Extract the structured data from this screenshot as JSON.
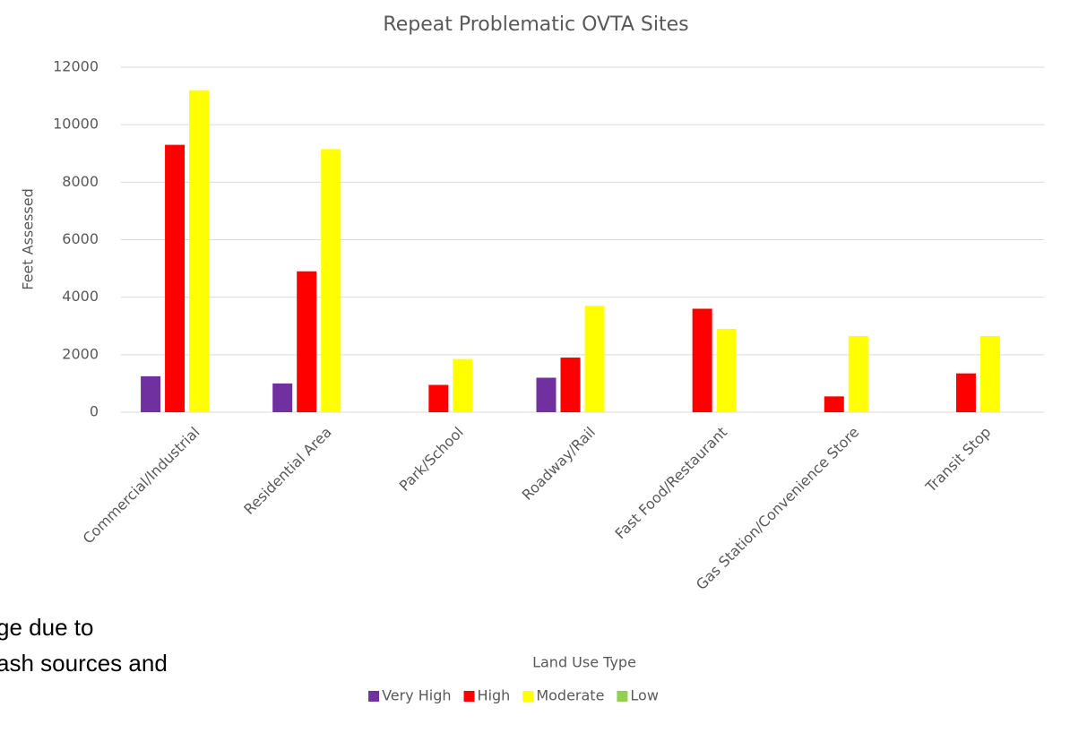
{
  "chart_data": {
    "type": "bar",
    "title": "Repeat Problematic OVTA Sites",
    "x_label": "Land Use Type",
    "y_label": "Feet Assessed",
    "categories": [
      "Commercial/Industrial",
      "Residential Area",
      "Park/School",
      "Roadway/Rail",
      "Fast Food/Restaurant",
      "Gas Station/Convenience Store",
      "Transit Stop"
    ],
    "series": [
      {
        "name": "Very High",
        "color": "#7030a0",
        "values": [
          1250,
          1000,
          null,
          1200,
          null,
          null,
          null
        ]
      },
      {
        "name": "High",
        "color": "#ff0000",
        "values": [
          9300,
          4900,
          950,
          1900,
          3600,
          550,
          1350
        ]
      },
      {
        "name": "Moderate",
        "color": "#ffff00",
        "values": [
          11200,
          9150,
          1850,
          3700,
          2900,
          2650,
          2650
        ]
      },
      {
        "name": "Low",
        "color": "#92d050",
        "values": [
          null,
          null,
          null,
          null,
          null,
          null,
          null
        ]
      }
    ],
    "ylim": [
      0,
      12000
    ],
    "yticks": [
      0,
      2000,
      4000,
      6000,
      8000,
      10000,
      12000
    ],
    "grid": true,
    "legend": "bottom"
  },
  "overlay_text": [
    "ge due to",
    "ash sources and"
  ]
}
